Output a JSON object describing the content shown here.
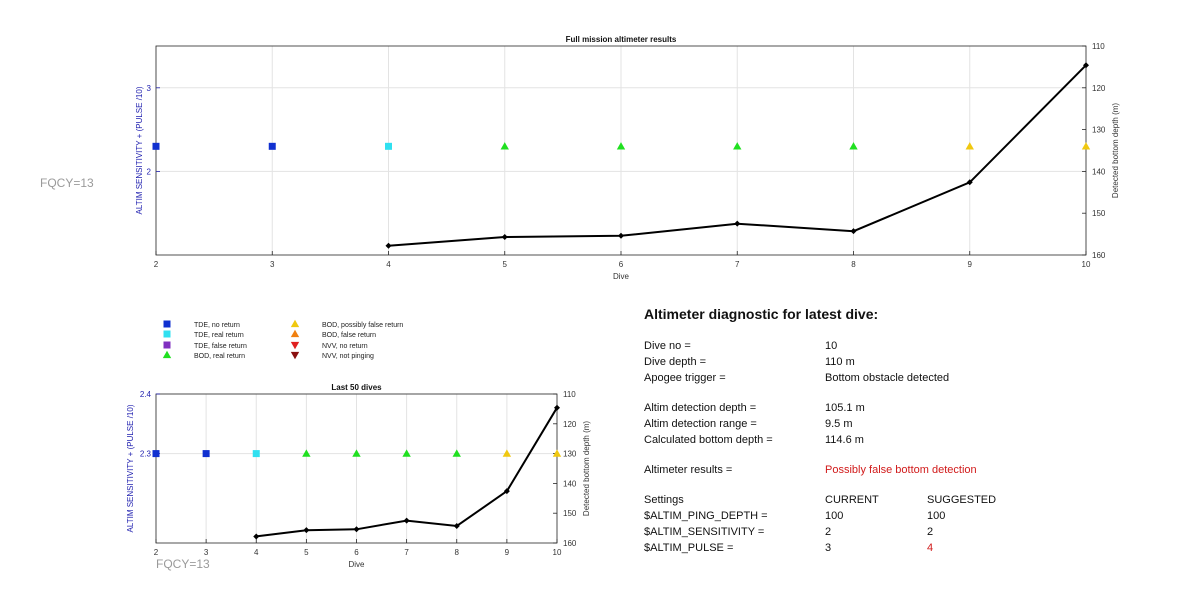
{
  "figure": {
    "fqcy_left": "FQCY=13",
    "fqcy_bottom": "FQCY=13"
  },
  "legend": [
    {
      "label": "TDE, no return",
      "marker": "square",
      "color": "#1030d0"
    },
    {
      "label": "TDE, real return",
      "marker": "square",
      "color": "#30e0f0"
    },
    {
      "label": "TDE, false return",
      "marker": "square",
      "color": "#8030c0"
    },
    {
      "label": "BOD, real return",
      "marker": "triangle-up",
      "color": "#20e020"
    },
    {
      "label": "BOD, possibly false return",
      "marker": "triangle-up",
      "color": "#f0c810"
    },
    {
      "label": "BOD, false return",
      "marker": "triangle-up",
      "color": "#f08010"
    },
    {
      "label": "NVV, no return",
      "marker": "triangle-down",
      "color": "#e02020"
    },
    {
      "label": "NVV, not pinging",
      "marker": "triangle-down",
      "color": "#8a1010"
    }
  ],
  "chart_data": [
    {
      "type": "line",
      "title": "Full mission altimeter results",
      "xlabel": "Dive",
      "ylabel": "ALTIM SENSITIVITY + (PULSE /10)",
      "y2label": "Detected bottom depth (m)",
      "xlim": [
        2,
        10
      ],
      "ylim": [
        1.0,
        3.5
      ],
      "y2lim": [
        110,
        160
      ],
      "y2_reversed": true,
      "xticks": [
        "2",
        "3",
        "4",
        "5",
        "6",
        "7",
        "8",
        "9",
        "10"
      ],
      "yticks": [
        "2",
        "3"
      ],
      "y2ticks": [
        "110",
        "120",
        "130",
        "140",
        "150",
        "160"
      ],
      "grid": true,
      "markers": [
        {
          "dive": 2,
          "value": 2.3,
          "legend_index": 0
        },
        {
          "dive": 3,
          "value": 2.3,
          "legend_index": 0
        },
        {
          "dive": 4,
          "value": 2.3,
          "legend_index": 1
        },
        {
          "dive": 5,
          "value": 2.3,
          "legend_index": 3
        },
        {
          "dive": 6,
          "value": 2.3,
          "legend_index": 3
        },
        {
          "dive": 7,
          "value": 2.3,
          "legend_index": 3
        },
        {
          "dive": 8,
          "value": 2.3,
          "legend_index": 3
        },
        {
          "dive": 9,
          "value": 2.3,
          "legend_index": 4
        },
        {
          "dive": 10,
          "value": 2.3,
          "legend_index": 4
        }
      ],
      "bottom_depth": {
        "x": [
          4,
          5,
          6,
          7,
          8,
          9,
          10
        ],
        "y": [
          157.8,
          155.7,
          155.4,
          152.5,
          154.3,
          142.6,
          114.6
        ]
      }
    },
    {
      "type": "line",
      "title": "Last 50 dives",
      "xlabel": "Dive",
      "ylabel": "ALTIM SENSITIVITY + (PULSE /10)",
      "y2label": "Detected bottom depth (m)",
      "xlim": [
        2,
        10
      ],
      "ylim": [
        2.15,
        2.4
      ],
      "y2lim": [
        110,
        160
      ],
      "y2_reversed": true,
      "xticks": [
        "2",
        "3",
        "4",
        "5",
        "6",
        "7",
        "8",
        "9",
        "10"
      ],
      "yticks": [
        "2.3",
        "2.4"
      ],
      "y2ticks": [
        "110",
        "120",
        "130",
        "140",
        "150",
        "160"
      ],
      "grid": true,
      "markers": [
        {
          "dive": 2,
          "value": 2.3,
          "legend_index": 0
        },
        {
          "dive": 3,
          "value": 2.3,
          "legend_index": 0
        },
        {
          "dive": 4,
          "value": 2.3,
          "legend_index": 1
        },
        {
          "dive": 5,
          "value": 2.3,
          "legend_index": 3
        },
        {
          "dive": 6,
          "value": 2.3,
          "legend_index": 3
        },
        {
          "dive": 7,
          "value": 2.3,
          "legend_index": 3
        },
        {
          "dive": 8,
          "value": 2.3,
          "legend_index": 3
        },
        {
          "dive": 9,
          "value": 2.3,
          "legend_index": 4
        },
        {
          "dive": 10,
          "value": 2.3,
          "legend_index": 4
        }
      ],
      "bottom_depth": {
        "x": [
          4,
          5,
          6,
          7,
          8,
          9,
          10
        ],
        "y": [
          157.8,
          155.7,
          155.4,
          152.5,
          154.3,
          142.6,
          114.6
        ]
      }
    }
  ],
  "diagnostic": {
    "title": "Altimeter diagnostic for latest dive:",
    "dive_no_label": "Dive no =",
    "dive_no_value": "10",
    "dive_depth_label": "Dive depth =",
    "dive_depth_value": "110 m",
    "apogee_label": "Apogee trigger =",
    "apogee_value": "Bottom obstacle detected",
    "altim_depth_label": "Altim detection depth =",
    "altim_depth_value": "105.1 m",
    "altim_range_label": "Altim detection range =",
    "altim_range_value": "9.5 m",
    "calc_bottom_label": "Calculated bottom depth =",
    "calc_bottom_value": "114.6 m",
    "results_label": "Altimeter results =",
    "results_value": "Possibly false bottom detection",
    "settings_label": "Settings",
    "current_label": "CURRENT",
    "suggested_label": "SUGGESTED",
    "ping_depth_label": "$ALTIM_PING_DEPTH =",
    "ping_depth_current": "100",
    "ping_depth_suggested": "100",
    "sensitivity_label": "$ALTIM_SENSITIVITY =",
    "sensitivity_current": "2",
    "sensitivity_suggested": "2",
    "pulse_label": "$ALTIM_PULSE =",
    "pulse_current": "3",
    "pulse_suggested": "4",
    "colors": {
      "warning": "#d11a1a"
    }
  }
}
